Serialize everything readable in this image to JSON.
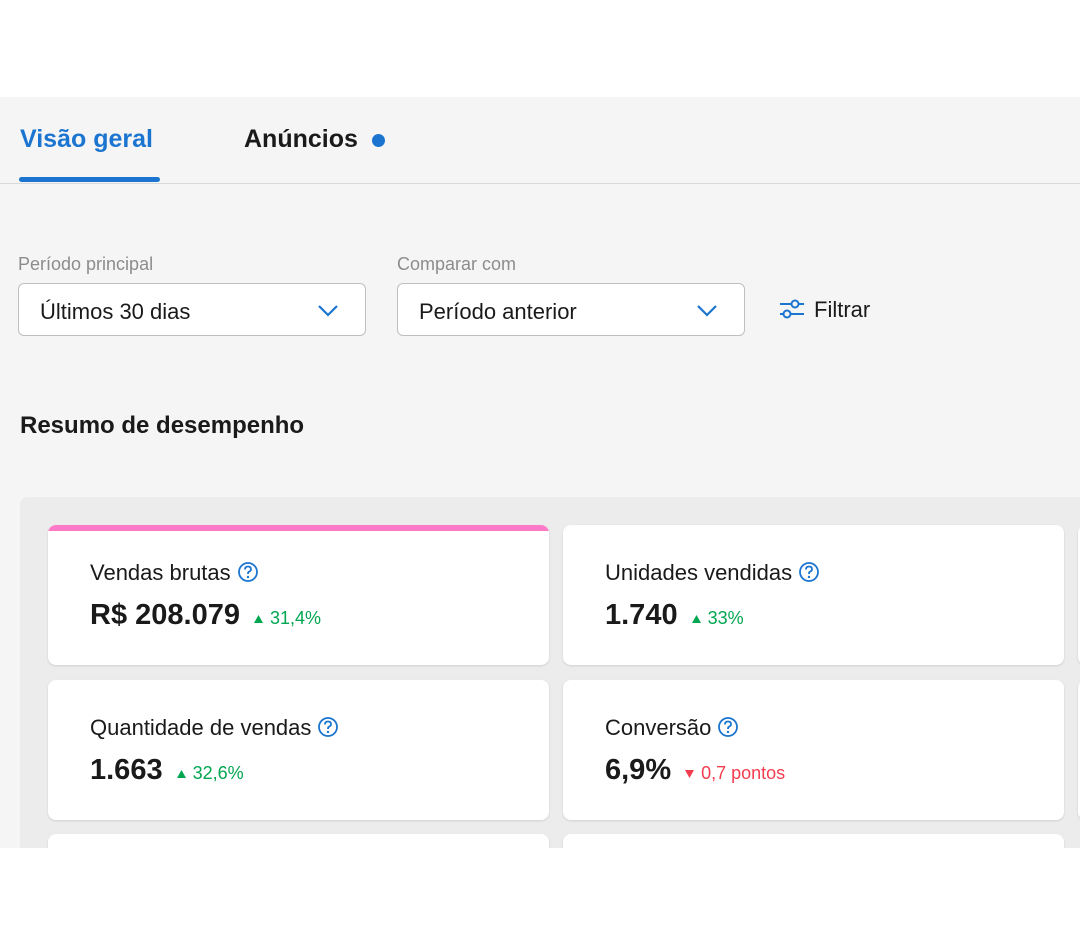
{
  "tabs": [
    {
      "label": "Visão geral",
      "active": true
    },
    {
      "label": "Anúncios",
      "active": false
    }
  ],
  "filters": [
    {
      "label": "Período principal",
      "value": "Últimos 30 dias"
    },
    {
      "label": "Comparar com",
      "value": "Período anterior"
    }
  ],
  "filter_button": "Filtrar",
  "section_title": "Resumo de desempenho",
  "cards": [
    {
      "title": "Vendas brutas",
      "value": "R$ 208.079",
      "change": "31,4%",
      "trend": "up"
    },
    {
      "title": "Unidades vendidas",
      "value": "1.740",
      "change": "33%",
      "trend": "up"
    },
    {
      "title": "Quantidade de vendas",
      "value": "1.663",
      "change": "32,6%",
      "trend": "up"
    },
    {
      "title": "Conversão",
      "value": "6,9%",
      "change": "0,7 pontos",
      "trend": "down"
    }
  ]
}
